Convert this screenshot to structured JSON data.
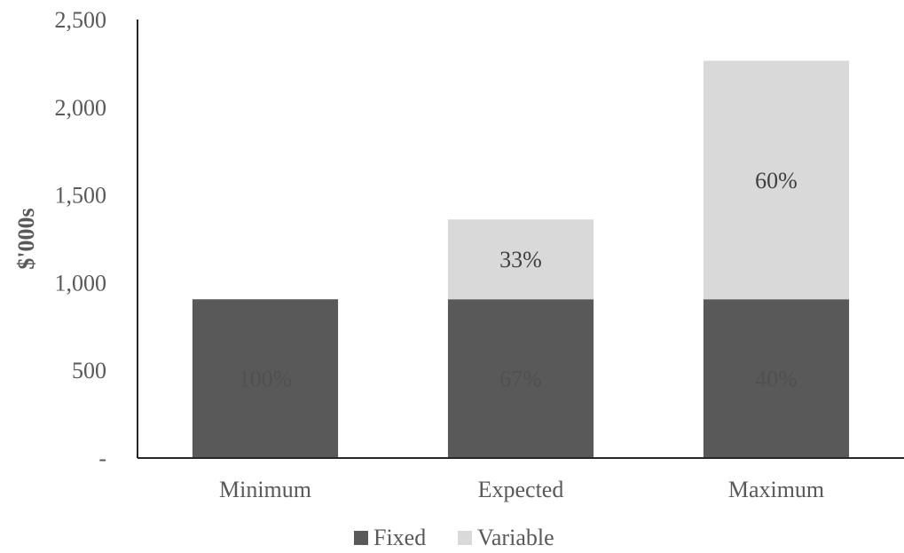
{
  "chart_data": {
    "type": "bar",
    "stacked": true,
    "categories": [
      "Minimum",
      "Expected",
      "Maximum"
    ],
    "series": [
      {
        "name": "Fixed",
        "values": [
          905,
          905,
          905
        ],
        "labels": [
          "100%",
          "67%",
          "40%"
        ],
        "color": "#595959",
        "label_color": "#505050"
      },
      {
        "name": "Variable",
        "values": [
          0,
          455,
          1360
        ],
        "labels": [
          "",
          "33%",
          "60%"
        ],
        "color": "#d9d9d9",
        "label_color": "#404040"
      }
    ],
    "ylabel": "$'000s",
    "xlabel": "",
    "ylim": [
      0,
      2500
    ],
    "yticks": [
      0,
      500,
      1000,
      1500,
      2000,
      2500
    ],
    "ytick_labels": [
      "-",
      "500",
      "1,000",
      "1,500",
      "2,000",
      "2,500"
    ],
    "grid": false,
    "legend_position": "bottom"
  }
}
